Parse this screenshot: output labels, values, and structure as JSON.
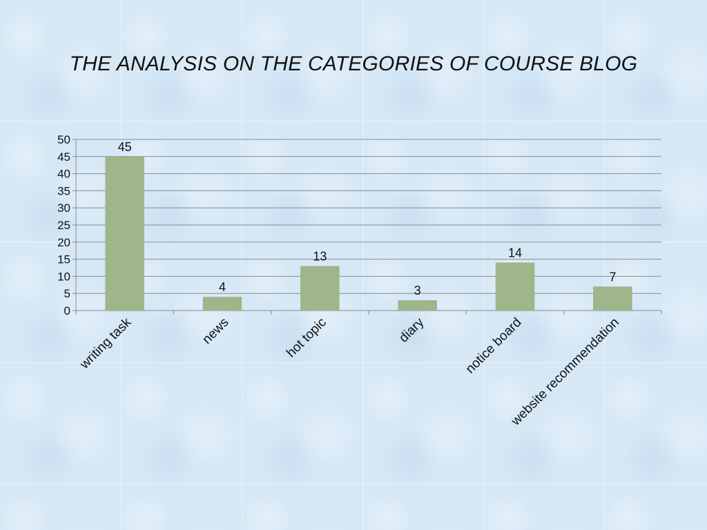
{
  "chart_data": {
    "type": "bar",
    "title": "THE ANALYSIS ON THE CATEGORIES OF COURSE BLOG",
    "categories": [
      "writing task",
      "news",
      "hot topic",
      "diary",
      "notice board",
      "website recommendation"
    ],
    "values": [
      45,
      4,
      13,
      3,
      14,
      7
    ],
    "ylim": [
      0,
      50
    ],
    "yticks": [
      0,
      5,
      10,
      15,
      20,
      25,
      30,
      35,
      40,
      45,
      50
    ],
    "grid": true,
    "legend": "none",
    "bar_color": "#9fb58a"
  }
}
